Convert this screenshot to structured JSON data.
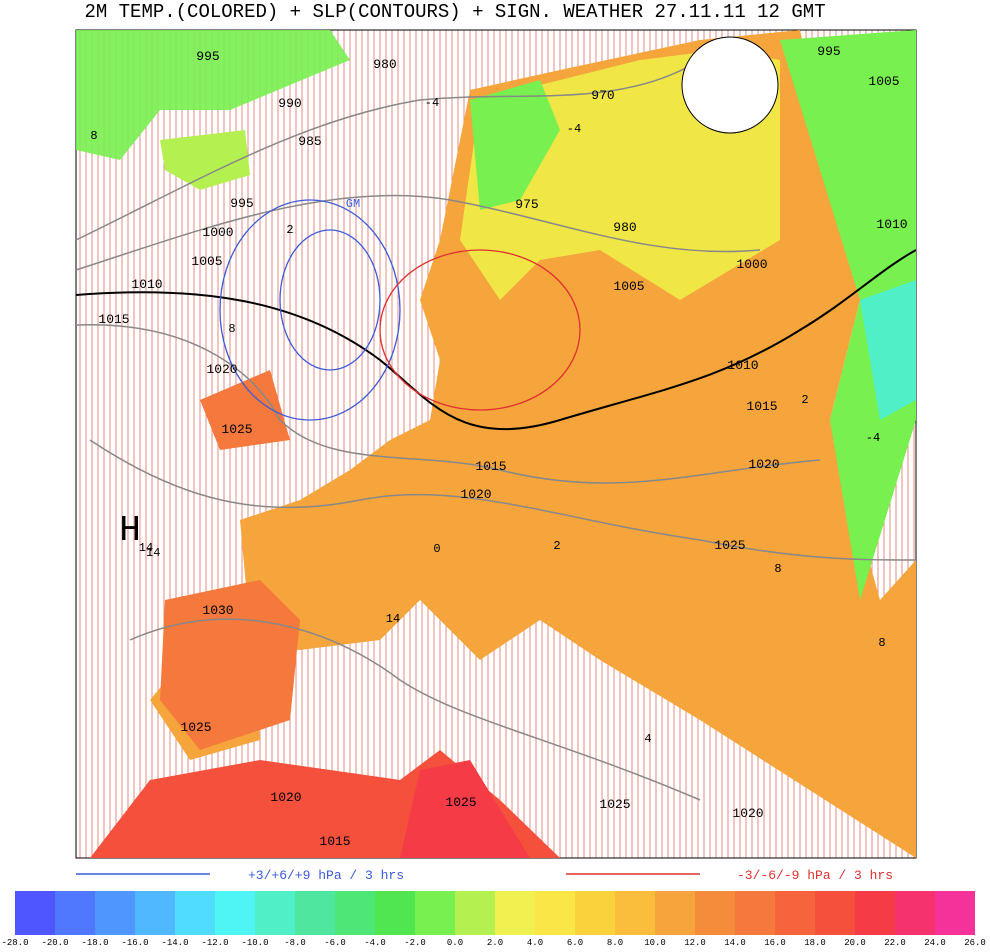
{
  "title": "2M TEMP.(COLORED) + SLP(CONTOURS) + SIGN. WEATHER 27.11.11 12  GMT",
  "legend": {
    "rise": "+3/+6/+9 hPa / 3 hrs",
    "rise_color": "#3b5bdb",
    "fall": "-3/-6/-9 hPa / 3 hrs",
    "fall_color": "#e03030"
  },
  "colorbar": {
    "labels": [
      "-28.0",
      "-20.0",
      "-18.0",
      "-16.0",
      "-14.0",
      "-12.0",
      "-10.0",
      "-8.0",
      "-6.0",
      "-4.0",
      "-2.0",
      "0.0",
      "2.0",
      "4.0",
      "6.0",
      "8.0",
      "10.0",
      "12.0",
      "14.0",
      "16.0",
      "18.0",
      "20.0",
      "22.0",
      "24.0",
      "26.0"
    ],
    "colors": [
      "#4f55ff",
      "#4f78ff",
      "#4f96ff",
      "#4fb8ff",
      "#4fdcff",
      "#4ff5f5",
      "#4ff0c8",
      "#4fe6a0",
      "#4fe678",
      "#50e650",
      "#78f050",
      "#b4f050",
      "#f0f050",
      "#fae646",
      "#fad23c",
      "#fabe3c",
      "#f5a53c",
      "#f58c3c",
      "#f5783c",
      "#f5643c",
      "#f5503c",
      "#f53c46",
      "#f5326e",
      "#f5329a"
    ]
  },
  "map": {
    "pressure_labels": [
      "995",
      "980",
      "990",
      "985",
      "995",
      "1000",
      "1005",
      "1010",
      "1015",
      "1020",
      "1025",
      "975",
      "980",
      "970",
      "1000",
      "1005",
      "1010",
      "1015",
      "1020",
      "995",
      "1005",
      "1010",
      "1015",
      "1020",
      "1025",
      "1030",
      "1025",
      "1020",
      "1015",
      "1025",
      "1025",
      "1020"
    ],
    "temperature_labels": [
      "-4",
      "-4",
      "8",
      "2",
      "8",
      "2",
      "-4",
      "14",
      "2",
      "8",
      "14",
      "8",
      "4",
      "0"
    ],
    "high": "H",
    "high_value": "14",
    "low": "GM"
  }
}
